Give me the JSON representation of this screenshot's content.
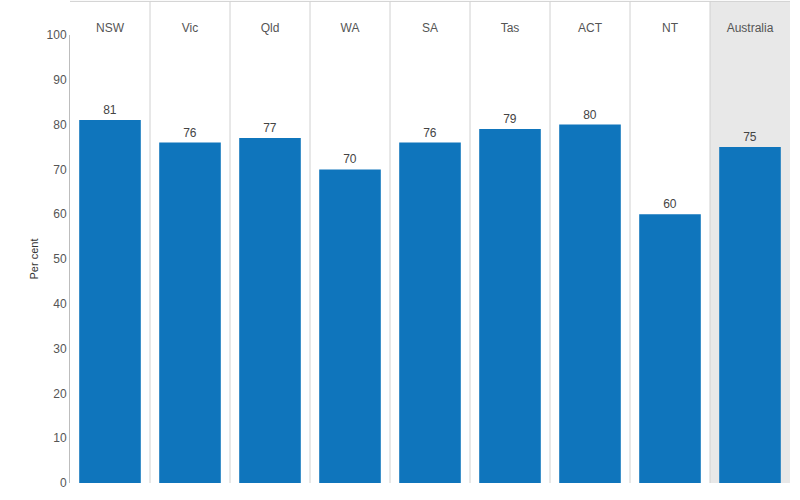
{
  "chart_data": {
    "type": "bar",
    "categories": [
      "NSW",
      "Vic",
      "Qld",
      "WA",
      "SA",
      "Tas",
      "ACT",
      "NT",
      "Australia"
    ],
    "values": [
      81,
      76,
      77,
      70,
      76,
      79,
      80,
      60,
      75
    ],
    "color": "#0f75bc",
    "y_label": "Per cent",
    "ylim": [
      0,
      100
    ],
    "yticks": [
      0,
      10,
      20,
      30,
      40,
      50,
      60,
      70,
      80,
      90,
      100
    ],
    "grid": false,
    "data_labels": true
  }
}
